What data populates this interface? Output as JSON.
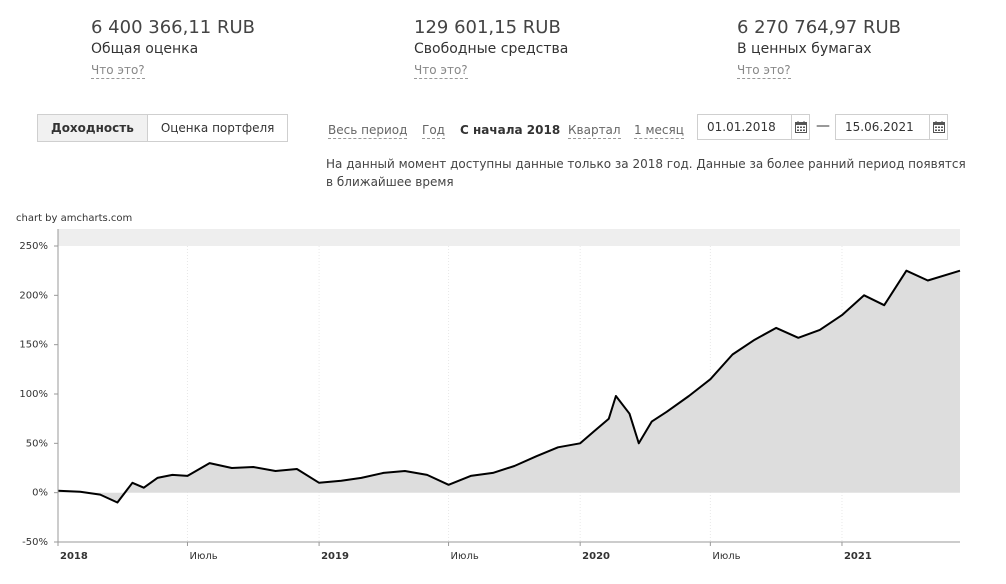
{
  "summary": [
    {
      "value": "6 400 366,11 RUB",
      "label": "Общая оценка",
      "help": "Что это?"
    },
    {
      "value": "129 601,15 RUB",
      "label": "Свободные средства",
      "help": "Что это?"
    },
    {
      "value": "6 270 764,97 RUB",
      "label": "В ценных бумагах",
      "help": "Что это?"
    }
  ],
  "view_toggle": {
    "yield": "Доходность",
    "valuation": "Оценка портфеля",
    "active": "yield"
  },
  "periods": {
    "all": "Весь период",
    "year": "Год",
    "ytd": "С начала 2018",
    "quarter": "Квартал",
    "month": "1 месяц",
    "active": "ytd"
  },
  "date_range": {
    "from": "01.01.2018",
    "separator": "—",
    "to": "15.06.2021"
  },
  "notice": "На данный момент доступны данные только за 2018 год. Данные за более ранний период появятся в ближайшее время",
  "credit": "chart by amcharts.com",
  "icons": {
    "calendar": "calendar-icon"
  },
  "colors": {
    "line": "#000000",
    "fill": "#dddddd",
    "band": "#eeeeee",
    "grid": "#e8e8e8"
  },
  "chart_data": {
    "type": "area",
    "ylim": [
      -50,
      250
    ],
    "yticks": [
      {
        "value": 250,
        "label": "250%"
      },
      {
        "value": 200,
        "label": "200%"
      },
      {
        "value": 150,
        "label": "150%"
      },
      {
        "value": 100,
        "label": "100%"
      },
      {
        "value": 50,
        "label": "50%"
      },
      {
        "value": 0,
        "label": "0%"
      },
      {
        "value": -50,
        "label": "-50%"
      }
    ],
    "xticks": [
      {
        "date": "2018-01-01",
        "label": "2018",
        "bold": true
      },
      {
        "date": "2018-07-01",
        "label": "Июль",
        "bold": false
      },
      {
        "date": "2019-01-01",
        "label": "2019",
        "bold": true
      },
      {
        "date": "2019-07-01",
        "label": "Июль",
        "bold": false
      },
      {
        "date": "2020-01-01",
        "label": "2020",
        "bold": true
      },
      {
        "date": "2020-07-01",
        "label": "Июль",
        "bold": false
      },
      {
        "date": "2021-01-01",
        "label": "2021",
        "bold": true
      }
    ],
    "xlim": [
      "2018-01-01",
      "2021-06-15"
    ],
    "series": [
      {
        "x": [
          "2018-01-01",
          "2018-02-01",
          "2018-03-01",
          "2018-03-25",
          "2018-04-15",
          "2018-05-01",
          "2018-05-20",
          "2018-06-10",
          "2018-07-01",
          "2018-08-01",
          "2018-09-01",
          "2018-10-01",
          "2018-11-01",
          "2018-12-01",
          "2019-01-01",
          "2019-02-01",
          "2019-03-01",
          "2019-04-01",
          "2019-05-01",
          "2019-06-01",
          "2019-07-01",
          "2019-08-01",
          "2019-09-01",
          "2019-10-01",
          "2019-11-01",
          "2019-12-01",
          "2020-01-01",
          "2020-01-20",
          "2020-02-10",
          "2020-02-20",
          "2020-03-10",
          "2020-03-23",
          "2020-04-10",
          "2020-05-01",
          "2020-06-01",
          "2020-07-01",
          "2020-08-01",
          "2020-09-01",
          "2020-10-01",
          "2020-11-01",
          "2020-12-01",
          "2021-01-01",
          "2021-02-01",
          "2021-03-01",
          "2021-04-01",
          "2021-05-01",
          "2021-06-15"
        ],
        "y": [
          2,
          1,
          -2,
          -10,
          10,
          5,
          15,
          18,
          17,
          30,
          25,
          26,
          22,
          24,
          10,
          12,
          15,
          20,
          22,
          18,
          8,
          17,
          20,
          27,
          37,
          46,
          50,
          62,
          75,
          98,
          80,
          50,
          72,
          82,
          98,
          115,
          140,
          155,
          167,
          157,
          165,
          180,
          200,
          190,
          225,
          215,
          225
        ]
      }
    ]
  }
}
